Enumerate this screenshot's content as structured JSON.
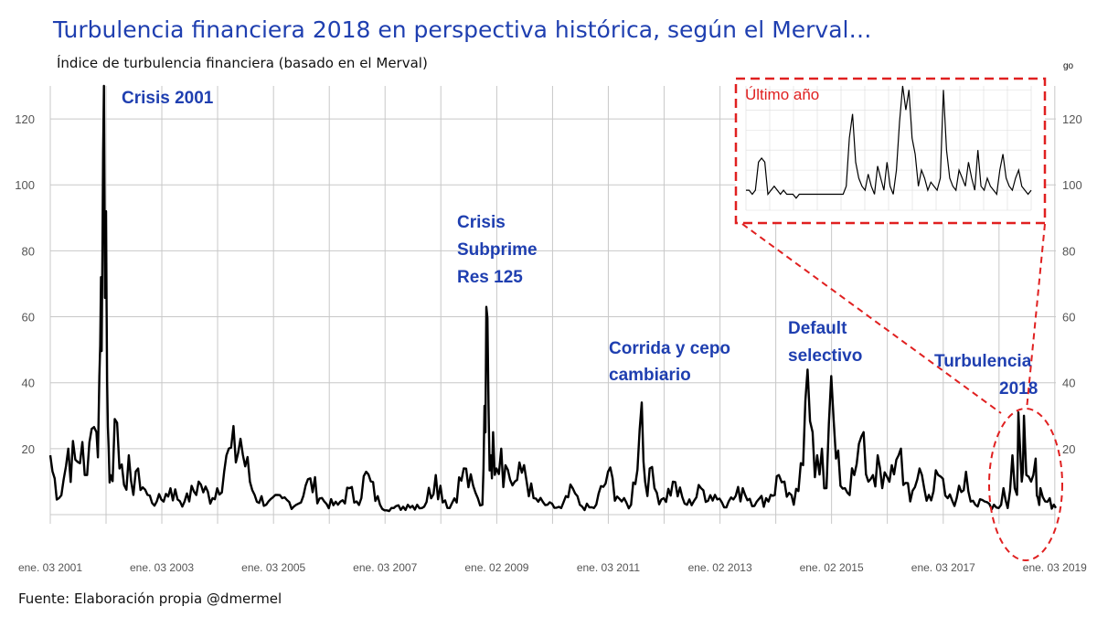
{
  "title": "Turbulencia financiera 2018 en perspectiva histórica, según el Merval…",
  "subtitle": "Índice de turbulencia financiera (basado en el Merval)",
  "source": "Fuente: Elaboración propia @dmermel",
  "corner_mark": "go",
  "colors": {
    "title": "#1f3fb0",
    "annotation": "#1f3fb0",
    "inset": "#e02020",
    "line": "#000000",
    "grid": "#c8c8c8"
  },
  "chart_data": [
    {
      "type": "line",
      "title": "",
      "xlabel": "",
      "ylabel": "",
      "ylim": [
        0,
        130
      ],
      "xlim": [
        "2001-01-03",
        "2019-01-10"
      ],
      "yticks": [
        20,
        40,
        60,
        80,
        100,
        120
      ],
      "xticks": [
        "ene. 03 2001",
        "ene. 03 2003",
        "ene. 03 2005",
        "ene. 03 2007",
        "ene. 02 2009",
        "ene. 03 2011",
        "ene. 02 2013",
        "ene. 02 2015",
        "ene. 03 2017",
        "ene. 03 2019"
      ],
      "grid": true,
      "series": [
        {
          "x": [
            "2001-01-03",
            "2001-03-01",
            "2001-05-01",
            "2001-07-01",
            "2001-08-01",
            "2001-09-01",
            "2001-10-01",
            "2001-11-01",
            "2001-11-20",
            "2001-12-01",
            "2001-12-10",
            "2001-12-20",
            "2002-01-03",
            "2002-01-10",
            "2002-01-20",
            "2002-02-01",
            "2002-03-01",
            "2002-04-01",
            "2002-05-01",
            "2002-06-01",
            "2002-07-01",
            "2002-08-01",
            "2002-10-01",
            "2002-12-01",
            "2003-03-01",
            "2003-06-01",
            "2003-09-01",
            "2003-12-01",
            "2004-03-01",
            "2004-06-01",
            "2004-09-01",
            "2004-12-01",
            "2005-03-01",
            "2005-06-01",
            "2005-09-01",
            "2005-12-01",
            "2006-03-01",
            "2006-05-15",
            "2006-07-01",
            "2006-09-01",
            "2006-12-01",
            "2007-03-01",
            "2007-06-01",
            "2007-08-01",
            "2007-09-01",
            "2007-12-01",
            "2008-03-01",
            "2008-06-01",
            "2008-09-01",
            "2008-10-01",
            "2008-10-15",
            "2008-10-27",
            "2008-11-10",
            "2008-11-25",
            "2008-12-10",
            "2009-01-01",
            "2009-02-01",
            "2009-03-01",
            "2009-05-01",
            "2009-07-01",
            "2009-09-01",
            "2009-12-01",
            "2010-03-01",
            "2010-05-15",
            "2010-07-01",
            "2010-10-01",
            "2011-01-01",
            "2011-04-01",
            "2011-06-01",
            "2011-08-10",
            "2011-09-01",
            "2011-10-01",
            "2011-11-01",
            "2012-01-01",
            "2012-03-01",
            "2012-06-01",
            "2012-09-01",
            "2012-12-01",
            "2013-03-01",
            "2013-06-01",
            "2013-09-01",
            "2013-12-01",
            "2014-01-23",
            "2014-03-01",
            "2014-05-01",
            "2014-07-01",
            "2014-07-30",
            "2014-09-01",
            "2014-10-01",
            "2014-11-01",
            "2014-12-01",
            "2015-01-01",
            "2015-02-01",
            "2015-04-01",
            "2015-06-01",
            "2015-08-01",
            "2015-09-01",
            "2015-10-01",
            "2015-11-01",
            "2015-12-01",
            "2016-02-01",
            "2016-04-01",
            "2016-06-01",
            "2016-08-01",
            "2016-10-01",
            "2016-12-01",
            "2017-02-01",
            "2017-04-01",
            "2017-06-01",
            "2017-08-01",
            "2017-10-01",
            "2017-12-01",
            "2018-01-01",
            "2018-02-01",
            "2018-03-01",
            "2018-04-01",
            "2018-05-01",
            "2018-05-10",
            "2018-06-01",
            "2018-06-15",
            "2018-07-01",
            "2018-08-01",
            "2018-08-31",
            "2018-09-15",
            "2018-10-01",
            "2018-11-01",
            "2018-12-01",
            "2019-01-10"
          ],
          "y": [
            18,
            5,
            20,
            16,
            22,
            12,
            26,
            25,
            42,
            72,
            78,
            130,
            92,
            40,
            20,
            12,
            29,
            14,
            9,
            18,
            6,
            14,
            6,
            4,
            8,
            4,
            10,
            5,
            18,
            23,
            6,
            4,
            5,
            3,
            11,
            4,
            3,
            8,
            4,
            13,
            3,
            2,
            3,
            3,
            2,
            12,
            2,
            14,
            5,
            3,
            33,
            63,
            33,
            18,
            25,
            14,
            20,
            15,
            10,
            15,
            5,
            3,
            2,
            8,
            3,
            2,
            13,
            4,
            3,
            34,
            10,
            14,
            8,
            5,
            10,
            3,
            8,
            6,
            4,
            8,
            4,
            6,
            12,
            10,
            3,
            15,
            44,
            25,
            18,
            20,
            8,
            42,
            17,
            8,
            12,
            25,
            10,
            12,
            18,
            8,
            15,
            20,
            4,
            14,
            6,
            12,
            5,
            5,
            13,
            3,
            4,
            3,
            2,
            8,
            2,
            18,
            6,
            31,
            10,
            30,
            12,
            10,
            17,
            5,
            8,
            4,
            5,
            2
          ]
        }
      ],
      "annotations": [
        {
          "label": "Crisis 2001"
        },
        {
          "label": "Crisis Subprime Res 125"
        },
        {
          "label": "Corrida y cepo cambiario"
        },
        {
          "label": "Default selectivo"
        },
        {
          "label": "Turbulencia 2018"
        }
      ]
    },
    {
      "type": "line",
      "title": "Último año",
      "ylim": [
        0,
        31
      ],
      "series": [
        {
          "values": [
            5,
            5,
            4,
            5,
            12,
            13,
            12,
            4,
            5,
            6,
            5,
            4,
            5,
            4,
            4,
            4,
            3,
            4,
            4,
            4,
            4,
            4,
            4,
            4,
            4,
            4,
            4,
            4,
            4,
            4,
            4,
            4,
            6,
            18,
            24,
            12,
            8,
            6,
            5,
            9,
            6,
            4,
            11,
            8,
            5,
            12,
            6,
            4,
            10,
            22,
            31,
            25,
            30,
            18,
            14,
            6,
            10,
            8,
            5,
            7,
            6,
            5,
            8,
            30,
            15,
            8,
            6,
            5,
            10,
            8,
            6,
            12,
            8,
            5,
            15,
            6,
            5,
            8,
            6,
            5,
            4,
            10,
            14,
            8,
            6,
            5,
            8,
            10,
            6,
            5,
            4,
            5
          ]
        }
      ]
    }
  ]
}
